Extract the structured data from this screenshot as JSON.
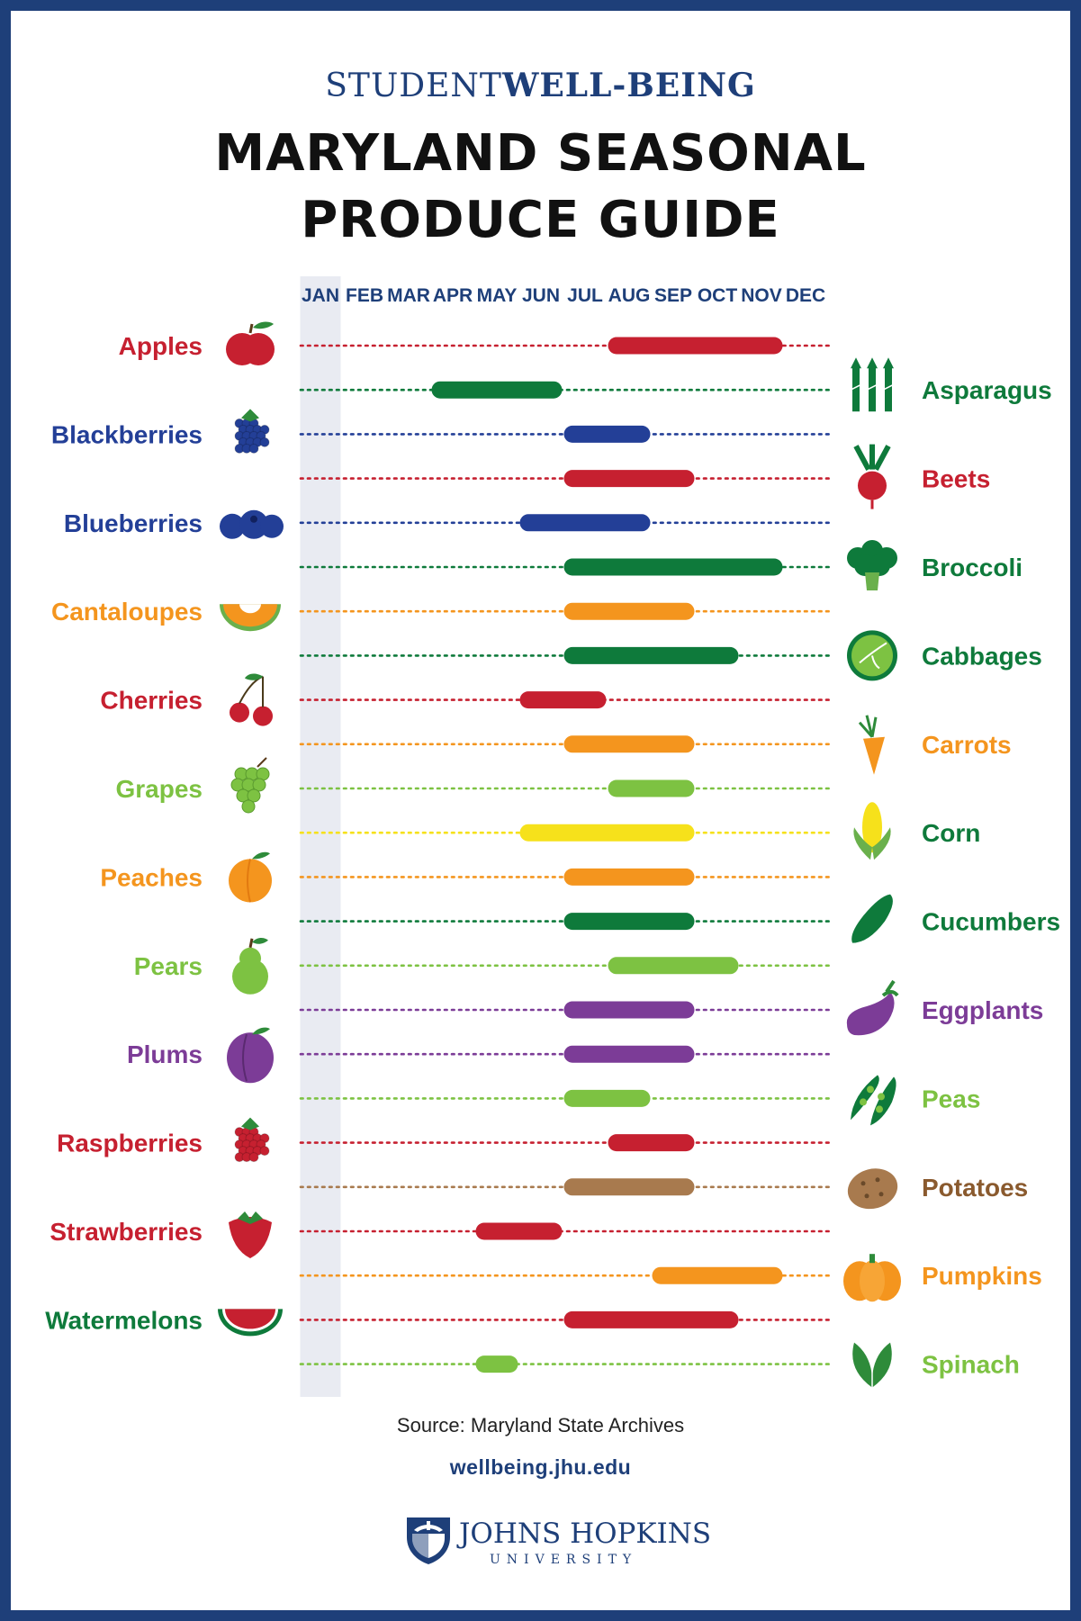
{
  "header": {
    "brand_light": "STUDENT",
    "brand_bold": "WELL-BEING",
    "title_line1": "MARYLAND SEASONAL",
    "title_line2": "PRODUCE GUIDE"
  },
  "chart_data": {
    "type": "timeline",
    "title": "MARYLAND SEASONAL PRODUCE GUIDE",
    "months": [
      "JAN",
      "FEB",
      "MAR",
      "APR",
      "MAY",
      "JUN",
      "JUL",
      "AUG",
      "SEP",
      "OCT",
      "NOV",
      "DEC"
    ],
    "items": [
      {
        "name": "Apples",
        "side": "left",
        "start": "AUG",
        "end": "NOV",
        "color": "#c62030",
        "icon": "apple-icon"
      },
      {
        "name": "Asparagus",
        "side": "right",
        "start": "APR",
        "end": "JUN",
        "color": "#0e7a3b",
        "icon": "asparagus-icon"
      },
      {
        "name": "Blackberries",
        "side": "left",
        "start": "JUL",
        "end": "AUG",
        "color": "#233f97",
        "icon": "blackberry-icon"
      },
      {
        "name": "Beets",
        "side": "right",
        "start": "JUL",
        "end": "SEP",
        "color": "#c62030",
        "icon": "beet-icon"
      },
      {
        "name": "Blueberries",
        "side": "left",
        "start": "JUN",
        "end": "AUG",
        "color": "#233f97",
        "icon": "blueberry-icon"
      },
      {
        "name": "Broccoli",
        "side": "right",
        "start": "JUL",
        "end": "NOV",
        "color": "#0e7a3b",
        "icon": "broccoli-icon"
      },
      {
        "name": "Cantaloupes",
        "side": "left",
        "start": "JUL",
        "end": "SEP",
        "color": "#f4951e",
        "icon": "cantaloupe-icon"
      },
      {
        "name": "Cabbages",
        "side": "right",
        "start": "JUL",
        "end": "OCT",
        "color": "#0e7a3b",
        "icon": "cabbage-icon"
      },
      {
        "name": "Cherries",
        "side": "left",
        "start": "JUN",
        "end": "JUL",
        "color": "#c62030",
        "icon": "cherry-icon"
      },
      {
        "name": "Carrots",
        "side": "right",
        "start": "JUL",
        "end": "SEP",
        "color": "#f4951e",
        "icon": "carrot-icon"
      },
      {
        "name": "Grapes",
        "side": "left",
        "start": "AUG",
        "end": "SEP",
        "color": "#7dc242",
        "icon": "grapes-icon"
      },
      {
        "name": "Corn",
        "side": "right",
        "start": "JUN",
        "end": "SEP",
        "color": "#f6e11b",
        "icon": "corn-icon"
      },
      {
        "name": "Peaches",
        "side": "left",
        "start": "JUL",
        "end": "SEP",
        "color": "#f4951e",
        "icon": "peach-icon"
      },
      {
        "name": "Cucumbers",
        "side": "right",
        "start": "JUL",
        "end": "SEP",
        "color": "#0e7a3b",
        "icon": "cucumber-icon"
      },
      {
        "name": "Pears",
        "side": "left",
        "start": "AUG",
        "end": "OCT",
        "color": "#7dc242",
        "icon": "pear-icon"
      },
      {
        "name": "Eggplants",
        "side": "right",
        "start": "JUL",
        "end": "SEP",
        "color": "#7c3c97",
        "icon": "eggplant-icon"
      },
      {
        "name": "Plums",
        "side": "left",
        "start": "JUL",
        "end": "SEP",
        "color": "#7c3c97",
        "icon": "plum-icon"
      },
      {
        "name": "Peas",
        "side": "right",
        "start": "JUL",
        "end": "AUG",
        "color": "#7dc242",
        "icon": "peas-icon"
      },
      {
        "name": "Raspberries",
        "side": "left",
        "start": "AUG",
        "end": "SEP",
        "color": "#c62030",
        "icon": "raspberry-icon"
      },
      {
        "name": "Potatoes",
        "side": "right",
        "start": "JUL",
        "end": "SEP",
        "color": "#a87a4e",
        "icon": "potato-icon"
      },
      {
        "name": "Strawberries",
        "side": "left",
        "start": "MAY",
        "end": "JUN",
        "color": "#c62030",
        "icon": "strawberry-icon"
      },
      {
        "name": "Pumpkins",
        "side": "right",
        "start": "SEP",
        "end": "NOV",
        "color": "#f4951e",
        "icon": "pumpkin-icon"
      },
      {
        "name": "Watermelons",
        "side": "left",
        "start": "JUL",
        "end": "OCT",
        "color": "#c62030",
        "icon": "watermelon-icon"
      },
      {
        "name": "Spinach",
        "side": "right",
        "start": "MAY",
        "end": "MAY",
        "color": "#7dc242",
        "icon": "spinach-icon"
      }
    ],
    "label_colors": {
      "Apples": "#c62030",
      "Asparagus": "#0e7a3b",
      "Blackberries": "#233f97",
      "Beets": "#c62030",
      "Blueberries": "#233f97",
      "Broccoli": "#0e7a3b",
      "Cantaloupes": "#f4951e",
      "Cabbages": "#0e7a3b",
      "Cherries": "#c62030",
      "Carrots": "#f4951e",
      "Grapes": "#7dc242",
      "Corn": "#0e7a3b",
      "Peaches": "#f4951e",
      "Cucumbers": "#0e7a3b",
      "Pears": "#7dc242",
      "Eggplants": "#7c3c97",
      "Plums": "#7c3c97",
      "Peas": "#7dc242",
      "Raspberries": "#c62030",
      "Potatoes": "#8a5a2e",
      "Strawberries": "#c62030",
      "Pumpkins": "#f4951e",
      "Watermelons": "#0e7a3b",
      "Spinach": "#7dc242"
    },
    "grid_stripe_color": "#e9ebf2"
  },
  "footer": {
    "source": "Source: Maryland State Archives",
    "website": "wellbeing.jhu.edu",
    "university_name": "JOHNS HOPKINS",
    "university_sub": "UNIVERSITY"
  }
}
